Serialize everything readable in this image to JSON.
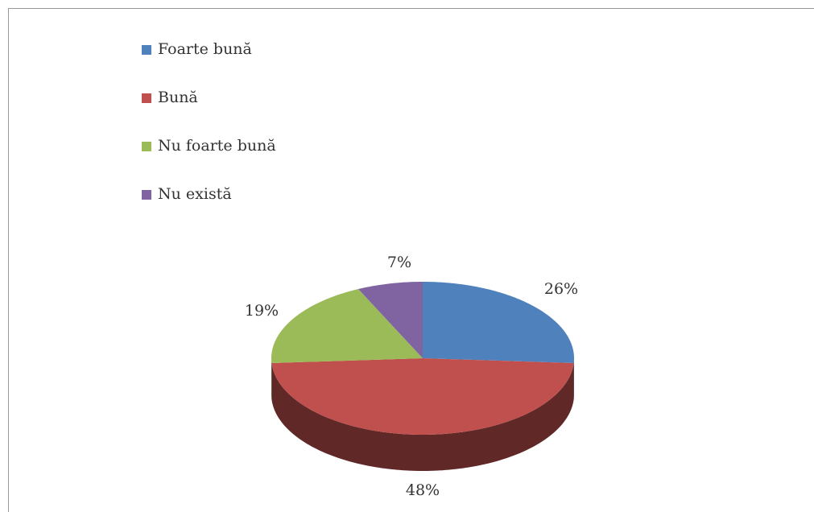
{
  "chart_data": {
    "type": "pie",
    "categories": [
      "Foarte bună",
      "Bună",
      "Nu foarte bună",
      "Nu există"
    ],
    "values": [
      26,
      48,
      19,
      7
    ],
    "value_labels": [
      "26%",
      "48%",
      "19%",
      "7%"
    ],
    "colors": [
      "#4f81bd",
      "#c0504d",
      "#9bbb59",
      "#8064a2"
    ],
    "legend": "top-left"
  }
}
